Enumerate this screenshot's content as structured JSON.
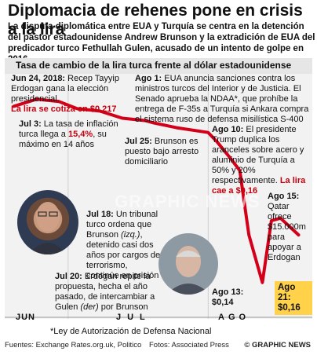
{
  "title": "Diplomacia de rehenes pone en crisis a la lira",
  "subtitle": "La disputa diplomática entre EUA y Turquía se centra en la detención del pastor estadounidense Andrew Brunson y la extradición de EUA del predicador turco Fethullah Gulen, acusado de un intento de golpe en 2016",
  "chart_heading": "Tasa de cambio de la lira turca frente al dólar estadounidense",
  "annotations": {
    "jun24": {
      "date": "Jun 24, 2018:",
      "text": " Recep Tayyip Erdogan gana la elección presidencial.",
      "highlight": "La lira se cotiza en $0,217"
    },
    "jul3": {
      "date": "Jul 3:",
      "text": " La tasa de inflación turca llega a ",
      "value": "15,4%",
      "text2": ", su máximo en 14 años"
    },
    "jul18": {
      "date": "Jul 18:",
      "text": " Un tribunal turco ordena que Brunson ",
      "italic": "(izq.)",
      "text2": ", detenido casi dos años por cargos de terrorismo, continúe en prisión"
    },
    "jul20": {
      "date": "Jul 20:",
      "text": " Erdogan repite la propuesta, hecha el año pasado, de intercambiar a Gulen ",
      "italic": "(der)",
      "text2": " por Brunson"
    },
    "jul25": {
      "date": "Jul 25:",
      "text": " Brunson es puesto bajo arresto domiciliario"
    },
    "ago1": {
      "date": "Ago 1:",
      "text": " EUA anuncia sanciones contra los ministros turcos del Interior y de Justicia. El Senado aprueba la NDAA*, que prohíbe la entrega de F-35s a Turquía si Ankara compra el sistema ruso de defensa misilística S-400"
    },
    "ago10": {
      "date": "Ago 10:",
      "text": " El presidente Trump duplica los aranceles sobre acero y aluminio de Turquía a 50% y 20% respectivamente.",
      "highlight": "La lira cae a $0,16"
    },
    "ago15": {
      "date": "Ago 15:",
      "text": " Qatar ofrece $15.000m para apoyar a Erdogan"
    },
    "ago13": {
      "date": "Ago 13:",
      "value": "$0,14"
    },
    "ago21": {
      "date": "Ago 21:",
      "value": "$0,16"
    }
  },
  "xaxis": {
    "jun": "JUN",
    "jul": "JUL",
    "ago": "AGO"
  },
  "footnote": "*Ley de Autorización de Defensa Nacional",
  "credits": {
    "sources": "Fuentes: Exchange Rates.org.uk, Politico",
    "photos": "Fotos: Associated Press",
    "brand": "© GRAPHIC NEWS"
  },
  "watermark": "GRAPHIC NEWS",
  "colors": {
    "line": "#d4001a",
    "callout": "#ffd24a",
    "highlight": "#c4000f"
  },
  "chart_data": {
    "type": "line",
    "x": [
      "Jun 19",
      "Jun 24",
      "Jun 29",
      "Jul 3",
      "Jul 8",
      "Jul 13",
      "Jul 18",
      "Jul 20",
      "Jul 25",
      "Ago 1",
      "Ago 3",
      "Ago 6",
      "Ago 8",
      "Ago 10",
      "Ago 13",
      "Ago 15",
      "Ago 17",
      "Ago 21"
    ],
    "values": [
      0.214,
      0.217,
      0.216,
      0.213,
      0.212,
      0.209,
      0.208,
      0.207,
      0.205,
      0.203,
      0.199,
      0.192,
      0.187,
      0.16,
      0.14,
      0.166,
      0.167,
      0.16
    ],
    "ylim": [
      0.13,
      0.225
    ]
  }
}
